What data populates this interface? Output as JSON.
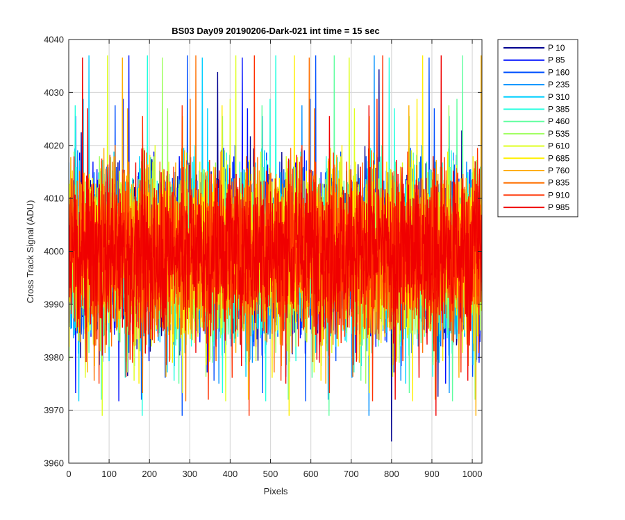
{
  "chart_data": {
    "type": "line",
    "title": "BS03 Day09 20190206-Dark-021 int time = 15 sec",
    "xlabel": "Pixels",
    "ylabel": "Cross Track Signal (ADU)",
    "xlim": [
      0,
      1024
    ],
    "ylim": [
      3960,
      4040
    ],
    "xticks": [
      0,
      100,
      200,
      300,
      400,
      500,
      600,
      700,
      800,
      900,
      1000
    ],
    "yticks": [
      3960,
      3970,
      3980,
      3990,
      4000,
      4010,
      4020,
      4030,
      4040
    ],
    "grid": true,
    "legend_position": "outside-top-right",
    "signal_center": 4000,
    "signal_typical_range": [
      3982,
      4018
    ],
    "series": [
      {
        "name": "P 10",
        "color": "#00008F"
      },
      {
        "name": "P 85",
        "color": "#0010FF"
      },
      {
        "name": "P 160",
        "color": "#0050FF"
      },
      {
        "name": "P 235",
        "color": "#0090FF"
      },
      {
        "name": "P 310",
        "color": "#00CFFF"
      },
      {
        "name": "P 385",
        "color": "#20FFDF"
      },
      {
        "name": "P 460",
        "color": "#60FF9F"
      },
      {
        "name": "P 535",
        "color": "#9FFF60"
      },
      {
        "name": "P 610",
        "color": "#DFFF20"
      },
      {
        "name": "P 685",
        "color": "#FFEF00"
      },
      {
        "name": "P 760",
        "color": "#FFAF00"
      },
      {
        "name": "P 835",
        "color": "#FF7000"
      },
      {
        "name": "P 910",
        "color": "#FF3000"
      },
      {
        "name": "P 985",
        "color": "#F00000"
      }
    ]
  }
}
